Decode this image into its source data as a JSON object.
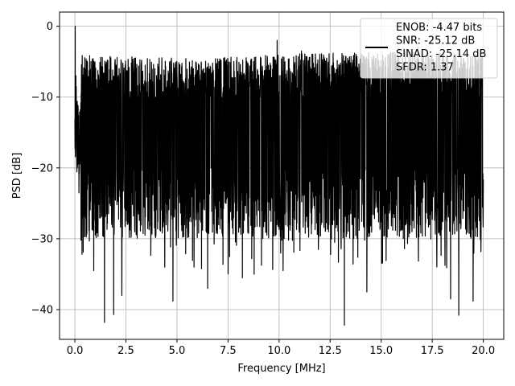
{
  "chart_data": {
    "type": "line",
    "title": "",
    "xlabel": "Frequency [MHz]",
    "ylabel": "PSD [dB]",
    "xlim": [
      -0.75,
      21
    ],
    "ylim": [
      -44.2,
      2
    ],
    "xticks": [
      0.0,
      2.5,
      5.0,
      7.5,
      10.0,
      12.5,
      15.0,
      17.5,
      20.0
    ],
    "xtick_labels": [
      "0.0",
      "2.5",
      "5.0",
      "7.5",
      "10.0",
      "12.5",
      "15.0",
      "17.5",
      "20.0"
    ],
    "yticks": [
      0,
      -10,
      -20,
      -30,
      -40
    ],
    "ytick_labels": [
      "0",
      "−10",
      "−20",
      "−30",
      "−40"
    ],
    "grid": true,
    "legend_position": "top-right",
    "series": [
      {
        "name": "ENOB: -4.47 bits",
        "color": "#000000",
        "trace": {
          "x_start": 0.0,
          "x_end": 20.0,
          "envelope_top_db": -8,
          "envelope_bottom_db": -30,
          "peak_db": 0,
          "min_db": -42.2
        }
      }
    ],
    "legend_entries": [
      "ENOB: -4.47 bits",
      "SNR: -25.12 dB",
      "SINAD: -25.14 dB",
      "SFDR: 1.37"
    ],
    "spikes": [
      {
        "x": 0.02,
        "y": 0.0
      },
      {
        "x": 0.05,
        "y": -7.0
      },
      {
        "x": 1.45,
        "y": -41.8
      },
      {
        "x": 1.9,
        "y": -40.7
      },
      {
        "x": 2.3,
        "y": -38.0
      },
      {
        "x": 4.8,
        "y": -38.8
      },
      {
        "x": 6.5,
        "y": -37.0
      },
      {
        "x": 8.2,
        "y": -35.5
      },
      {
        "x": 10.2,
        "y": -34.5
      },
      {
        "x": 13.2,
        "y": -42.2
      },
      {
        "x": 14.3,
        "y": -37.5
      },
      {
        "x": 18.4,
        "y": -38.5
      },
      {
        "x": 18.8,
        "y": -40.8
      },
      {
        "x": 19.5,
        "y": -38.8
      },
      {
        "x": 5.8,
        "y": -6.0
      },
      {
        "x": 9.9,
        "y": -2.0
      },
      {
        "x": 11.1,
        "y": -3.5
      },
      {
        "x": 14.6,
        "y": -5.5
      },
      {
        "x": 16.8,
        "y": -3.0
      },
      {
        "x": 17.0,
        "y": -3.5
      }
    ]
  }
}
